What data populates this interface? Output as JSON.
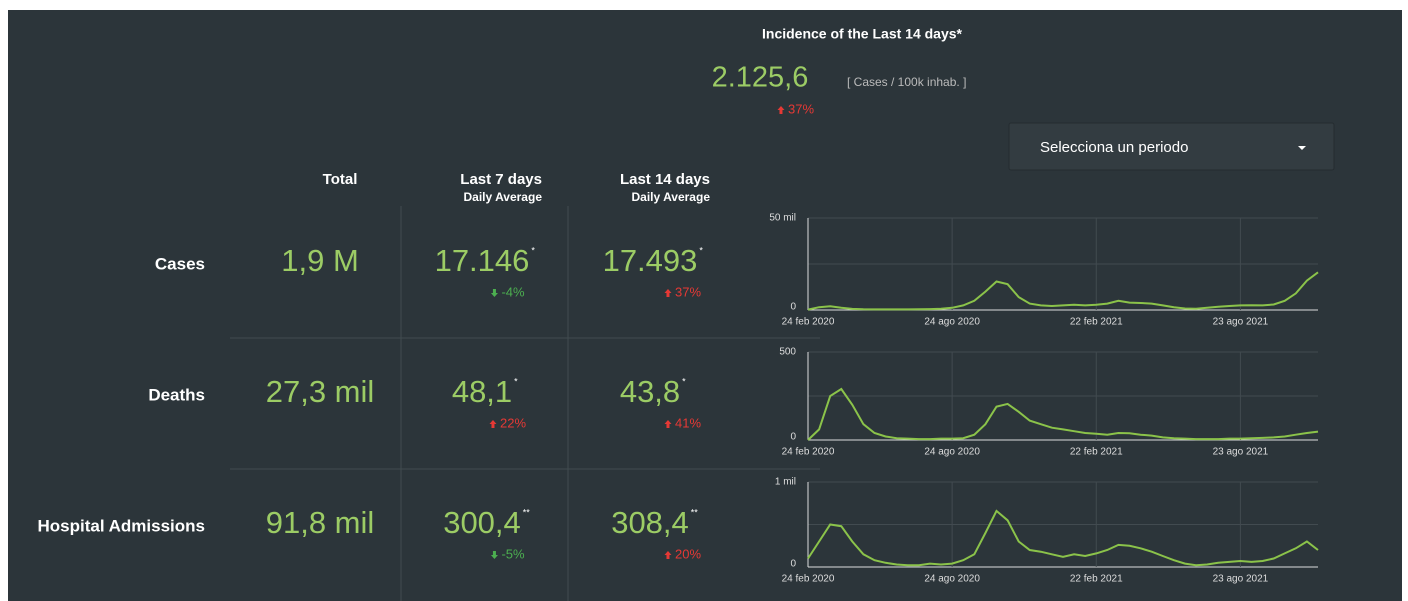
{
  "incidence": {
    "title": "Incidence of the Last 14 days*",
    "value": "2.125,6",
    "unit": "[ Cases / 100k inhab. ]",
    "change": "37%"
  },
  "dropdown": {
    "label": "Selecciona un periodo"
  },
  "columns": [
    {
      "title": "Total"
    },
    {
      "title": "Last 7 days",
      "subtitle": "Daily Average"
    },
    {
      "title": "Last 14 days",
      "subtitle": "Daily Average"
    }
  ],
  "rows": [
    {
      "label": "Cases",
      "total": "1,9 M",
      "last7": {
        "value": "17.146",
        "note": "*",
        "change": "-4%"
      },
      "last14": {
        "value": "17.493",
        "note": "*",
        "change": "37%"
      }
    },
    {
      "label": "Deaths",
      "total": "27,3 mil",
      "last7": {
        "value": "48,1",
        "note": "*",
        "change": "22%"
      },
      "last14": {
        "value": "43,8",
        "note": "*",
        "change": "41%"
      }
    },
    {
      "label": "Hospital Admissions",
      "total": "91,8 mil",
      "last7": {
        "value": "300,4",
        "note": "**",
        "change": "-5%"
      },
      "last14": {
        "value": "308,4",
        "note": "**",
        "change": "20%"
      }
    }
  ],
  "charts": [
    {
      "type": "line",
      "color": "#8bc34a",
      "x": [
        0,
        2,
        4,
        6,
        8,
        10,
        12,
        14,
        16,
        18,
        20,
        22,
        24,
        26,
        28,
        30,
        32,
        34,
        36,
        38,
        40,
        42,
        44,
        46,
        48,
        50,
        52,
        54,
        56,
        58,
        60,
        62,
        64,
        66,
        68,
        70,
        72,
        74,
        76,
        78,
        80,
        82,
        84,
        86,
        88,
        90,
        92
      ],
      "values": [
        200,
        1500,
        2000,
        1200,
        600,
        400,
        300,
        300,
        300,
        300,
        400,
        500,
        700,
        1200,
        2500,
        5000,
        10000,
        15500,
        14000,
        7000,
        3500,
        2500,
        2200,
        2500,
        2800,
        2500,
        2800,
        3500,
        5000,
        4000,
        3800,
        3500,
        2500,
        1500,
        800,
        700,
        1200,
        1800,
        2200,
        2500,
        2600,
        2500,
        3000,
        5000,
        9000,
        16000,
        20500
      ],
      "xlim": [
        0,
        92
      ],
      "xticks": [
        {
          "value": 0,
          "label": "24 feb 2020"
        },
        {
          "value": 26,
          "label": "24 ago 2020"
        },
        {
          "value": 52,
          "label": "22 feb 2021"
        },
        {
          "value": 78,
          "label": "23 ago 2021"
        }
      ],
      "ylim": [
        0,
        50000
      ],
      "yticks": [
        0,
        {
          "value": 50000,
          "label": "50 mil"
        }
      ]
    },
    {
      "type": "line",
      "color": "#8bc34a",
      "x": [
        0,
        2,
        4,
        6,
        8,
        10,
        12,
        14,
        16,
        18,
        20,
        22,
        24,
        26,
        28,
        30,
        32,
        34,
        36,
        38,
        40,
        42,
        44,
        46,
        48,
        50,
        52,
        54,
        56,
        58,
        60,
        62,
        64,
        66,
        68,
        70,
        72,
        74,
        76,
        78,
        80,
        82,
        84,
        86,
        88,
        90,
        92
      ],
      "values": [
        0,
        60,
        250,
        290,
        200,
        90,
        40,
        20,
        10,
        8,
        5,
        5,
        8,
        8,
        10,
        30,
        90,
        190,
        205,
        160,
        110,
        90,
        70,
        60,
        50,
        40,
        35,
        30,
        40,
        38,
        30,
        25,
        15,
        10,
        8,
        5,
        5,
        5,
        8,
        8,
        10,
        12,
        15,
        20,
        30,
        40,
        48
      ],
      "xlim": [
        0,
        92
      ],
      "xticks": [
        {
          "value": 0,
          "label": "24 feb 2020"
        },
        {
          "value": 26,
          "label": "24 ago 2020"
        },
        {
          "value": 52,
          "label": "22 feb 2021"
        },
        {
          "value": 78,
          "label": "23 ago 2021"
        }
      ],
      "ylim": [
        0,
        500
      ],
      "yticks": [
        0,
        500
      ]
    },
    {
      "type": "line",
      "color": "#8bc34a",
      "x": [
        0,
        2,
        4,
        6,
        8,
        10,
        12,
        14,
        16,
        18,
        20,
        22,
        24,
        26,
        28,
        30,
        32,
        34,
        36,
        38,
        40,
        42,
        44,
        46,
        48,
        50,
        52,
        54,
        56,
        58,
        60,
        62,
        64,
        66,
        68,
        70,
        72,
        74,
        76,
        78,
        80,
        82,
        84,
        86,
        88,
        90,
        92
      ],
      "values": [
        100,
        300,
        500,
        480,
        300,
        150,
        80,
        50,
        30,
        20,
        20,
        40,
        30,
        40,
        80,
        150,
        400,
        660,
        550,
        300,
        200,
        180,
        150,
        120,
        150,
        130,
        160,
        200,
        260,
        250,
        220,
        180,
        130,
        80,
        40,
        20,
        30,
        50,
        60,
        70,
        60,
        70,
        100,
        160,
        220,
        300,
        200
      ],
      "xlim": [
        0,
        92
      ],
      "xticks": [
        {
          "value": 0,
          "label": "24 feb 2020"
        },
        {
          "value": 26,
          "label": "24 ago 2020"
        },
        {
          "value": 52,
          "label": "22 feb 2021"
        },
        {
          "value": 78,
          "label": "23 ago 2021"
        }
      ],
      "ylim": [
        0,
        1000
      ],
      "yticks": [
        0,
        {
          "value": 1000,
          "label": "1 mil"
        }
      ]
    }
  ]
}
